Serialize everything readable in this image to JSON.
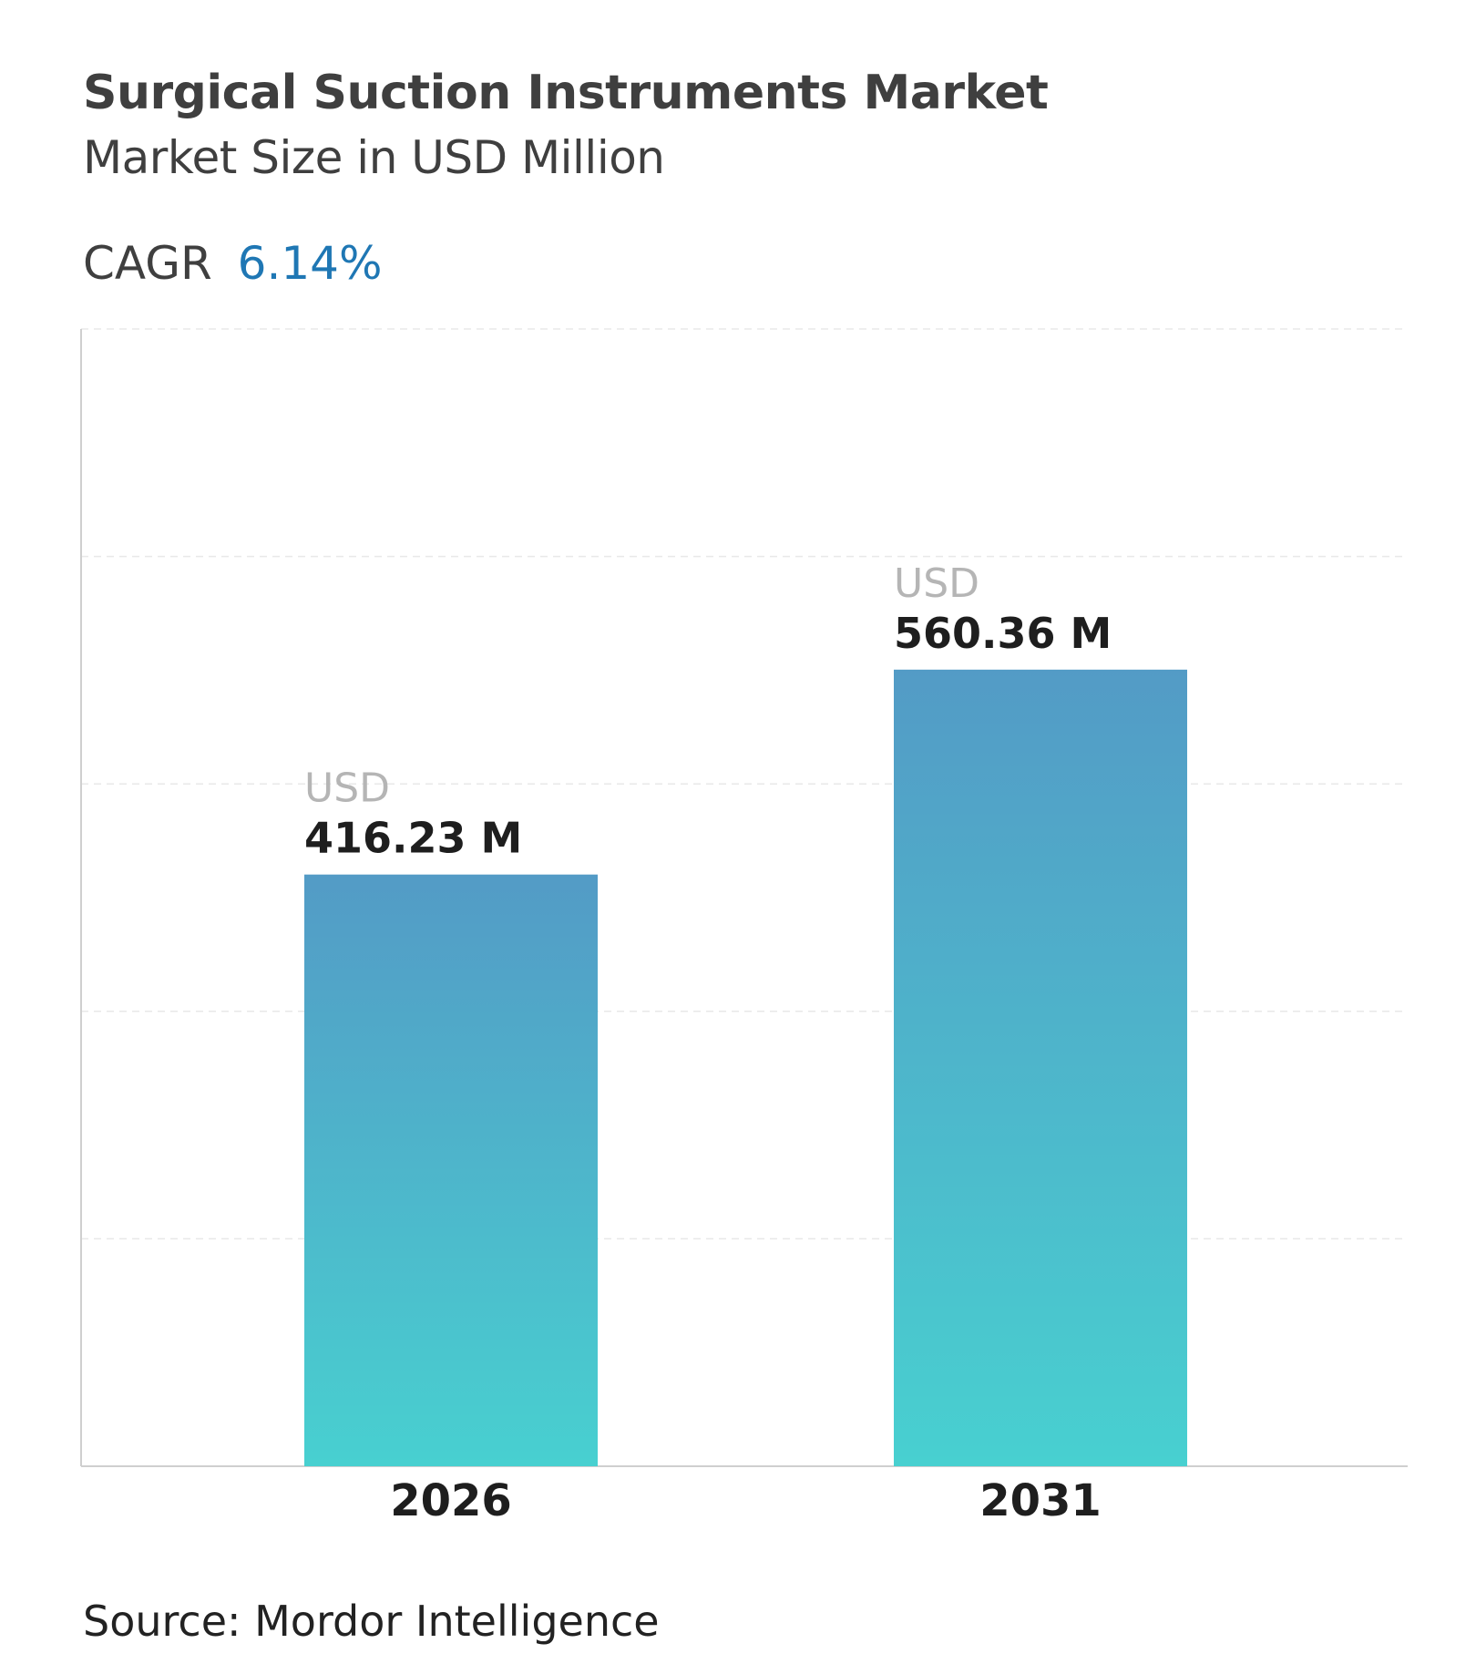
{
  "header": {
    "title": "Surgical Suction Instruments Market",
    "subtitle": "Market Size in USD Million",
    "cagr_label": "CAGR",
    "cagr_value": "6.14%"
  },
  "colors": {
    "accent": "#1f77b4",
    "bar_top": "#539bc6",
    "bar_bottom": "#48d0d0",
    "value_unit": "#b5b5b5",
    "value_text": "#1e1e1e",
    "grid": "#e8e8e8",
    "axis": "#cfcfcf"
  },
  "chart_data": {
    "type": "bar",
    "categories": [
      "2026",
      "2031"
    ],
    "values": [
      416.23,
      560.36
    ],
    "value_prefix": "USD",
    "value_labels": [
      "416.23 M",
      "560.36 M"
    ],
    "ylim": [
      0,
      800
    ],
    "grid": true
  },
  "footer": {
    "source": "Source: Mordor Intelligence"
  }
}
